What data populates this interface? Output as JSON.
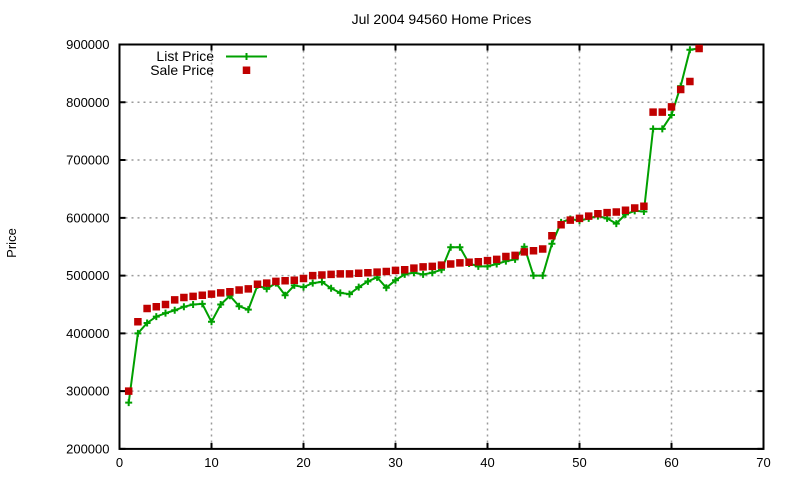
{
  "chart_data": {
    "type": "line",
    "title": "Jul 2004 94560 Home Prices",
    "xlabel": "",
    "ylabel": "Price",
    "xlim": [
      0,
      70
    ],
    "ylim": [
      200000,
      900000
    ],
    "x_ticks": [
      0,
      10,
      20,
      30,
      40,
      50,
      60,
      70
    ],
    "y_ticks": [
      200000,
      300000,
      400000,
      500000,
      600000,
      700000,
      800000,
      900000
    ],
    "grid": true,
    "legend_position": "top-left",
    "grid_color": "#9a9a9a",
    "x": [
      1,
      2,
      3,
      4,
      5,
      6,
      7,
      8,
      9,
      10,
      11,
      12,
      13,
      14,
      15,
      16,
      17,
      18,
      19,
      20,
      21,
      22,
      23,
      24,
      25,
      26,
      27,
      28,
      29,
      30,
      31,
      32,
      33,
      34,
      35,
      36,
      37,
      38,
      39,
      40,
      41,
      42,
      43,
      44,
      45,
      46,
      47,
      48,
      49,
      50,
      51,
      52,
      53,
      54,
      55,
      56,
      57,
      58,
      59,
      60,
      61,
      62,
      63
    ],
    "series": [
      {
        "name": "List Price",
        "style": "linespoints",
        "marker": "plus",
        "color": "#00a000",
        "values": [
          280000,
          400000,
          418000,
          429000,
          435000,
          440000,
          446000,
          450000,
          451000,
          420000,
          450000,
          465000,
          447000,
          441000,
          483000,
          477000,
          487000,
          466000,
          483000,
          480000,
          487000,
          489000,
          478000,
          470000,
          468000,
          480000,
          490000,
          497000,
          479000,
          492000,
          502000,
          505000,
          502000,
          505000,
          510000,
          549000,
          549000,
          521000,
          516000,
          516000,
          520000,
          525000,
          528000,
          550000,
          500000,
          500000,
          555000,
          592000,
          598000,
          595000,
          599000,
          603000,
          599000,
          590000,
          606000,
          612000,
          611000,
          754000,
          754000,
          778000,
          828000,
          891000,
          893000
        ]
      },
      {
        "name": "Sale Price",
        "style": "points",
        "marker": "filled-square",
        "color": "#c00000",
        "values": [
          300000,
          420000,
          443000,
          446000,
          450000,
          458000,
          462000,
          464000,
          466000,
          468000,
          470000,
          472000,
          475000,
          477000,
          485000,
          487000,
          490000,
          491000,
          492000,
          495000,
          500000,
          501000,
          502000,
          503000,
          503000,
          504000,
          505000,
          506000,
          507000,
          509000,
          510000,
          513000,
          515000,
          516000,
          518000,
          520000,
          522000,
          523000,
          524000,
          526000,
          528000,
          533000,
          535000,
          541000,
          543000,
          546000,
          569000,
          588000,
          596000,
          599000,
          603000,
          607000,
          609000,
          610000,
          613000,
          617000,
          620000,
          783000,
          783000,
          792000,
          822000,
          836000,
          893000
        ]
      }
    ]
  }
}
